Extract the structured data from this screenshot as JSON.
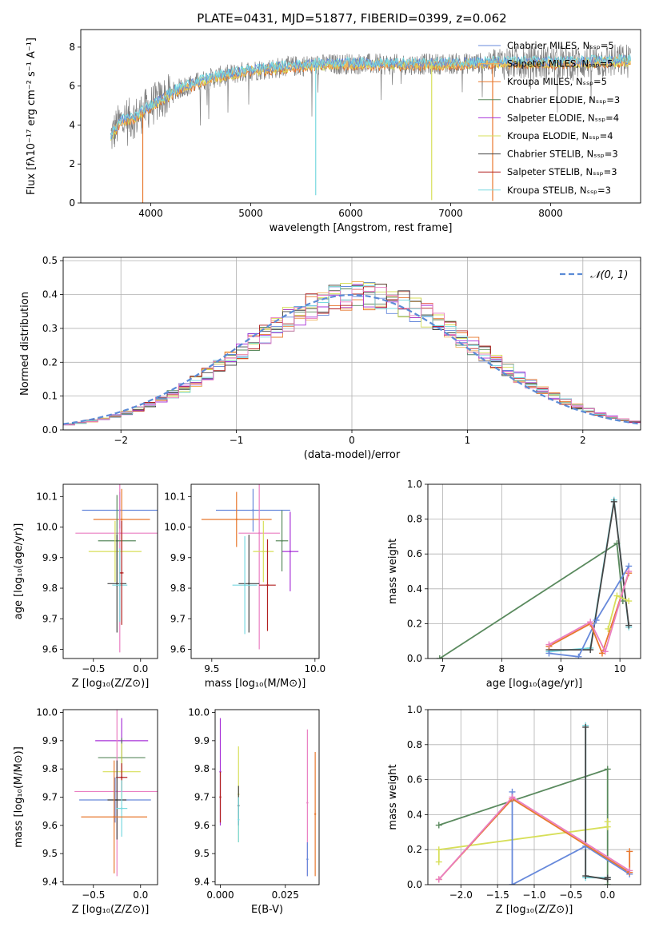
{
  "figure": {
    "title": "PLATE=0431, MJD=51877, FIBERID=0399, z=0.062"
  },
  "colors": {
    "chabrier_miles": "#6789db",
    "salpeter_miles": "#efb25c",
    "kroupa_miles": "#e8782e",
    "chabrier_elodie": "#5a8a5e",
    "salpeter_elodie": "#a833d8",
    "kroupa_elodie": "#d7df59",
    "chabrier_stelib": "#444444",
    "salpeter_stelib": "#b22020",
    "kroupa_stelib": "#78d9e0",
    "data": "#808080",
    "normal": "#5b8bd6",
    "pink": "#ea7fc2",
    "grid": "#b0b0b0"
  },
  "chart_data": [
    {
      "id": "spectrum",
      "type": "line",
      "title": "PLATE=0431, MJD=51877, FIBERID=0399, z=0.062",
      "xlabel": "wavelength [Angstrom, rest frame]",
      "ylabel": "Flux [fλ10⁻¹⁷ erg cm⁻² s⁻¹ A⁻¹]",
      "xlim": [
        3300,
        8900
      ],
      "ylim": [
        0,
        8.9
      ],
      "xticks": [
        4000,
        5000,
        6000,
        7000,
        8000
      ],
      "yticks": [
        0,
        2,
        4,
        6,
        8
      ],
      "grid": false,
      "legend_position": "right",
      "continuum": [
        [
          3600,
          3.4
        ],
        [
          3700,
          4.2
        ],
        [
          3850,
          4.4
        ],
        [
          3950,
          4.8
        ],
        [
          4100,
          5.3
        ],
        [
          4300,
          5.9
        ],
        [
          4600,
          6.4
        ],
        [
          5000,
          6.8
        ],
        [
          5500,
          7.05
        ],
        [
          6000,
          7.15
        ],
        [
          6500,
          7.1
        ],
        [
          7000,
          7.15
        ],
        [
          7500,
          7.2
        ],
        [
          8000,
          7.2
        ],
        [
          8500,
          7.25
        ],
        [
          8800,
          7.3
        ]
      ],
      "spikes": [
        [
          5650,
          0.4
        ],
        [
          6810,
          0.15
        ],
        [
          7420,
          0.1
        ],
        [
          3920,
          0.0
        ]
      ],
      "legend": [
        {
          "label": "Chabrier MILES, Nₛₛₚ=5",
          "color_key": "chabrier_miles"
        },
        {
          "label": "Salpeter MILES, Nₛₛₚ=5",
          "color_key": "salpeter_miles"
        },
        {
          "label": "Kroupa MILES, Nₛₛₚ=5",
          "color_key": "kroupa_miles"
        },
        {
          "label": "Chabrier ELODIE, Nₛₛₚ=3",
          "color_key": "chabrier_elodie"
        },
        {
          "label": "Salpeter ELODIE, Nₛₛₚ=4",
          "color_key": "salpeter_elodie"
        },
        {
          "label": "Kroupa ELODIE, Nₛₛₚ=4",
          "color_key": "kroupa_elodie"
        },
        {
          "label": "Chabrier STELIB, Nₛₛₚ=3",
          "color_key": "chabrier_stelib"
        },
        {
          "label": "Salpeter STELIB, Nₛₛₚ=3",
          "color_key": "salpeter_stelib"
        },
        {
          "label": "Kroupa STELIB, Nₛₛₚ=3",
          "color_key": "kroupa_stelib"
        }
      ]
    },
    {
      "id": "residuals",
      "type": "line",
      "xlabel": "(data-model)/error",
      "ylabel": "Normed distribution",
      "xlim": [
        -2.5,
        2.5
      ],
      "ylim": [
        0,
        0.51
      ],
      "xticks": [
        -2,
        -1,
        0,
        1,
        2
      ],
      "xtick_labels": [
        "−2",
        "−1",
        "0",
        "1",
        "2"
      ],
      "yticks": [
        0,
        0.1,
        0.2,
        0.3,
        0.4,
        0.5
      ],
      "ytick_labels": [
        "0.0",
        "0.1",
        "0.2",
        "0.3",
        "0.4",
        "0.5"
      ],
      "grid": true,
      "legend_position": "top-right",
      "legend": [
        {
          "label": "𝒩(0, 1)",
          "color_key": "normal"
        }
      ],
      "bin_width": 0.1
    },
    {
      "id": "age_vs_z",
      "type": "scatter",
      "xlabel": "Z [log₁₀(Z/Z⊙)]",
      "ylabel": "age  [log₁₀(age/yr)]",
      "xlim": [
        -0.82,
        0.18
      ],
      "ylim": [
        9.57,
        10.14
      ],
      "xticks": [
        -0.5,
        0.0
      ],
      "xtick_labels": [
        "−0.5",
        "0.0"
      ],
      "yticks": [
        9.6,
        9.7,
        9.8,
        9.9,
        10.0,
        10.1
      ],
      "ytick_labels": [
        "9.6",
        "9.7",
        "9.8",
        "9.9",
        "10.0",
        "10.1"
      ],
      "grid": false,
      "points": [
        {
          "x": -0.22,
          "y": 10.055,
          "xerr": 0.4,
          "yerr": 0.06,
          "c": "chabrier_miles"
        },
        {
          "x": -0.2,
          "y": 10.025,
          "xerr": 0.3,
          "yerr": 0.1,
          "c": "kroupa_miles"
        },
        {
          "x": -0.22,
          "y": 9.98,
          "xerr": 0.47,
          "yerr": 0.39,
          "c": "pink"
        },
        {
          "x": -0.25,
          "y": 9.955,
          "xerr": 0.2,
          "yerr": 0.15,
          "c": "chabrier_elodie"
        },
        {
          "x": -0.27,
          "y": 9.92,
          "xerr": 0.28,
          "yerr": 0.1,
          "c": "kroupa_elodie"
        },
        {
          "x": -0.25,
          "y": 9.815,
          "xerr": 0.1,
          "yerr": 0.16,
          "c": "chabrier_stelib"
        },
        {
          "x": -0.22,
          "y": 9.81,
          "xerr": 0.08,
          "yerr": 0.12,
          "c": "kroupa_stelib"
        },
        {
          "x": -0.2,
          "y": 9.85,
          "xerr": 0.02,
          "yerr": 0.17,
          "c": "salpeter_stelib"
        }
      ]
    },
    {
      "id": "age_vs_mass",
      "type": "scatter",
      "xlabel": "mass [log₁₀(M/M⊙)]",
      "ylabel": "",
      "xlim": [
        9.4,
        10.02
      ],
      "ylim": [
        9.57,
        10.14
      ],
      "xticks": [
        9.5,
        10.0
      ],
      "xtick_labels": [
        "9.5",
        "10.0"
      ],
      "yticks": [
        9.6,
        9.7,
        9.8,
        9.9,
        10.0,
        10.1
      ],
      "ytick_labels": [
        "9.6",
        "9.7",
        "9.8",
        "9.9",
        "10.0",
        "10.1"
      ],
      "grid": false,
      "points": [
        {
          "x": 9.7,
          "y": 10.055,
          "xerr": 0.18,
          "yerr": 0.07,
          "c": "chabrier_miles"
        },
        {
          "x": 9.62,
          "y": 10.025,
          "xerr": 0.17,
          "yerr": 0.09,
          "c": "kroupa_miles"
        },
        {
          "x": 9.73,
          "y": 9.98,
          "xerr": 0.1,
          "yerr": 0.38,
          "c": "pink"
        },
        {
          "x": 9.88,
          "y": 9.92,
          "xerr": 0.04,
          "yerr": 0.13,
          "c": "salpeter_elodie"
        },
        {
          "x": 9.75,
          "y": 9.92,
          "xerr": 0.05,
          "yerr": 0.1,
          "c": "kroupa_elodie"
        },
        {
          "x": 9.84,
          "y": 9.955,
          "xerr": 0.03,
          "yerr": 0.1,
          "c": "chabrier_elodie"
        },
        {
          "x": 9.68,
          "y": 9.815,
          "xerr": 0.05,
          "yerr": 0.16,
          "c": "chabrier_stelib"
        },
        {
          "x": 9.66,
          "y": 9.81,
          "xerr": 0.06,
          "yerr": 0.16,
          "c": "kroupa_stelib"
        },
        {
          "x": 9.77,
          "y": 9.81,
          "xerr": 0.04,
          "yerr": 0.15,
          "c": "salpeter_stelib"
        }
      ]
    },
    {
      "id": "weight_vs_age",
      "type": "line",
      "xlabel": "age  [log₁₀(age/yr)]",
      "ylabel": "mass weight",
      "xlim": [
        6.75,
        10.35
      ],
      "ylim": [
        0,
        1.0
      ],
      "xticks": [
        7,
        8,
        9,
        10
      ],
      "yticks": [
        0,
        0.2,
        0.4,
        0.6,
        0.8,
        1.0
      ],
      "ytick_labels": [
        "0.0",
        "0.2",
        "0.4",
        "0.6",
        "0.8",
        "1.0"
      ],
      "grid": true,
      "series": [
        {
          "c": "chabrier_elodie",
          "x": [
            6.95,
            9.95,
            10.05
          ],
          "y": [
            0.0,
            0.66,
            0.33
          ]
        },
        {
          "c": "kroupa_stelib",
          "x": [
            8.8,
            9.5,
            9.9,
            10.15
          ],
          "y": [
            0.04,
            0.06,
            0.91,
            0.18
          ]
        },
        {
          "c": "chabrier_stelib",
          "x": [
            8.8,
            9.5,
            9.9,
            10.15
          ],
          "y": [
            0.05,
            0.05,
            0.9,
            0.19
          ]
        },
        {
          "c": "chabrier_miles",
          "x": [
            8.8,
            9.3,
            9.6,
            10.15
          ],
          "y": [
            0.03,
            0.01,
            0.22,
            0.53
          ]
        },
        {
          "c": "kroupa_miles",
          "x": [
            8.8,
            9.5,
            9.7,
            10.15
          ],
          "y": [
            0.07,
            0.2,
            0.03,
            0.49
          ]
        },
        {
          "c": "pink",
          "x": [
            8.8,
            9.5,
            9.75,
            10.15
          ],
          "y": [
            0.08,
            0.21,
            0.04,
            0.5
          ]
        },
        {
          "c": "kroupa_elodie",
          "x": [
            9.8,
            9.95,
            10.15
          ],
          "y": [
            0.17,
            0.36,
            0.33
          ]
        }
      ]
    },
    {
      "id": "mass_vs_z",
      "type": "scatter",
      "xlabel": "Z [log₁₀(Z/Z⊙)]",
      "ylabel": "mass [log₁₀(M/M⊙)]",
      "xlim": [
        -0.82,
        0.18
      ],
      "ylim": [
        9.39,
        10.01
      ],
      "xticks": [
        -0.5,
        0.0
      ],
      "xtick_labels": [
        "−0.5",
        "0.0"
      ],
      "yticks": [
        9.4,
        9.5,
        9.6,
        9.7,
        9.8,
        9.9,
        10.0
      ],
      "ytick_labels": [
        "9.4",
        "9.5",
        "9.6",
        "9.7",
        "9.8",
        "9.9",
        "10.0"
      ],
      "grid": false,
      "points": [
        {
          "x": -0.2,
          "y": 9.9,
          "xerr": 0.28,
          "yerr": 0.08,
          "c": "salpeter_elodie"
        },
        {
          "x": -0.2,
          "y": 9.84,
          "xerr": 0.25,
          "yerr": 0.07,
          "c": "chabrier_elodie"
        },
        {
          "x": -0.2,
          "y": 9.79,
          "xerr": 0.2,
          "yerr": 0.1,
          "c": "kroupa_elodie"
        },
        {
          "x": -0.2,
          "y": 9.77,
          "xerr": 0.06,
          "yerr": 0.05,
          "c": "salpeter_stelib"
        },
        {
          "x": -0.25,
          "y": 9.72,
          "xerr": 0.45,
          "yerr": 0.3,
          "c": "pink"
        },
        {
          "x": -0.27,
          "y": 9.69,
          "xerr": 0.38,
          "yerr": 0.08,
          "c": "chabrier_miles"
        },
        {
          "x": -0.25,
          "y": 9.69,
          "xerr": 0.1,
          "yerr": 0.14,
          "c": "chabrier_stelib"
        },
        {
          "x": -0.2,
          "y": 9.66,
          "xerr": 0.06,
          "yerr": 0.1,
          "c": "kroupa_stelib"
        },
        {
          "x": -0.28,
          "y": 9.63,
          "xerr": 0.35,
          "yerr": 0.2,
          "c": "kroupa_miles"
        }
      ]
    },
    {
      "id": "mass_vs_ebv",
      "type": "scatter",
      "xlabel": "E(B-V)",
      "ylabel": "",
      "xlim": [
        -0.002,
        0.038
      ],
      "ylim": [
        9.39,
        10.01
      ],
      "xticks": [
        0.0,
        0.025
      ],
      "xtick_labels": [
        "0.000",
        "0.025"
      ],
      "yticks": [
        9.4,
        9.5,
        9.6,
        9.7,
        9.8,
        9.9,
        10.0
      ],
      "ytick_labels": [
        "9.4",
        "9.5",
        "9.6",
        "9.7",
        "9.8",
        "9.9",
        "10.0"
      ],
      "grid": false,
      "points": [
        {
          "x": 0.0,
          "y": 9.79,
          "xerr": 0,
          "yerr": 0.19,
          "c": "salpeter_elodie"
        },
        {
          "x": 0.0,
          "y": 9.7,
          "xerr": 0,
          "yerr": 0.09,
          "c": "salpeter_stelib"
        },
        {
          "x": 0.007,
          "y": 9.71,
          "xerr": 0,
          "yerr": 0.17,
          "c": "kroupa_elodie"
        },
        {
          "x": 0.007,
          "y": 9.67,
          "xerr": 0,
          "yerr": 0.07,
          "c": "chabrier_stelib"
        },
        {
          "x": 0.007,
          "y": 9.62,
          "xerr": 0,
          "yerr": 0.08,
          "c": "kroupa_stelib"
        },
        {
          "x": 0.0335,
          "y": 9.68,
          "xerr": 0,
          "yerr": 0.26,
          "c": "pink"
        },
        {
          "x": 0.0335,
          "y": 9.48,
          "xerr": 0,
          "yerr": 0.06,
          "c": "chabrier_miles"
        },
        {
          "x": 0.0365,
          "y": 9.64,
          "xerr": 0,
          "yerr": 0.22,
          "c": "kroupa_miles"
        }
      ]
    },
    {
      "id": "weight_vs_z",
      "type": "line",
      "xlabel": "Z [log₁₀(Z/Z⊙)]",
      "ylabel": "mass weight",
      "xlim": [
        -2.45,
        0.45
      ],
      "ylim": [
        0,
        1.0
      ],
      "xticks": [
        -2.0,
        -1.5,
        -1.0,
        -0.5,
        0.0
      ],
      "xtick_labels": [
        "−2.0",
        "−1.5",
        "−1.0",
        "−0.5",
        "0.0"
      ],
      "yticks": [
        0,
        0.2,
        0.4,
        0.6,
        0.8,
        1.0
      ],
      "ytick_labels": [
        "0.0",
        "0.2",
        "0.4",
        "0.6",
        "0.8",
        "1.0"
      ],
      "grid": true,
      "series": [
        {
          "c": "chabrier_elodie",
          "x": [
            -2.3,
            0.0,
            0.0
          ],
          "y": [
            0.34,
            0.66,
            0.0
          ]
        },
        {
          "c": "kroupa_elodie",
          "x": [
            -2.3,
            -2.3,
            0.0,
            0.0
          ],
          "y": [
            0.13,
            0.2,
            0.33,
            0.36
          ]
        },
        {
          "c": "kroupa_stelib",
          "x": [
            -0.3,
            -0.3,
            0.0,
            0.0
          ],
          "y": [
            0.91,
            0.04,
            0.04,
            0.04
          ]
        },
        {
          "c": "chabrier_stelib",
          "x": [
            -0.3,
            -0.3,
            0.0,
            0.0
          ],
          "y": [
            0.9,
            0.05,
            0.03,
            0.04
          ]
        },
        {
          "c": "chabrier_miles",
          "x": [
            -1.3,
            -1.3,
            -0.3,
            0.3
          ],
          "y": [
            0.53,
            0.0,
            0.22,
            0.06
          ]
        },
        {
          "c": "kroupa_miles",
          "x": [
            -2.3,
            -1.3,
            0.3,
            0.3
          ],
          "y": [
            0.03,
            0.49,
            0.07,
            0.19
          ]
        },
        {
          "c": "pink",
          "x": [
            -2.3,
            -1.3,
            0.3
          ],
          "y": [
            0.03,
            0.5,
            0.08
          ]
        }
      ]
    }
  ]
}
